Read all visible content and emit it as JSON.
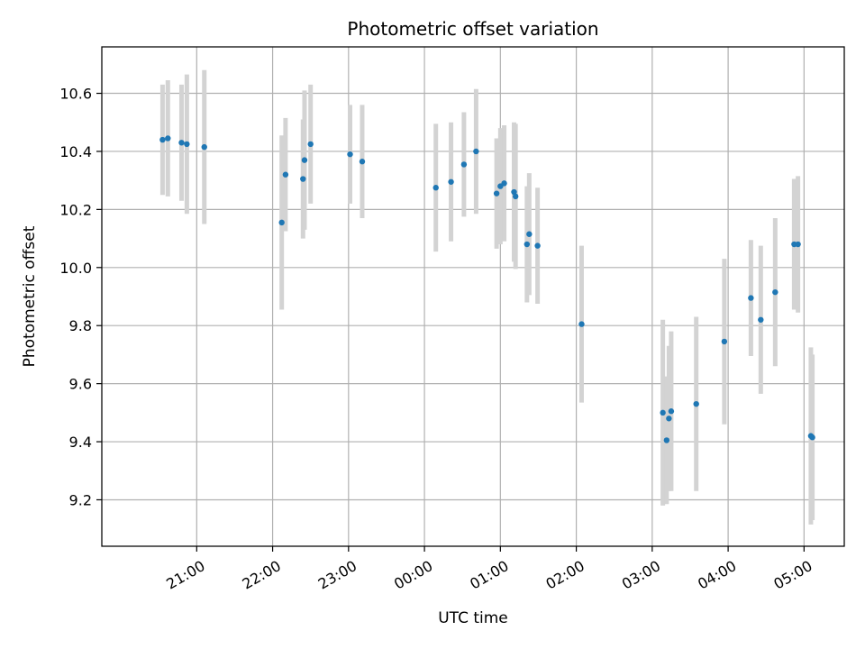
{
  "chart_data": {
    "type": "scatter",
    "title": "Photometric offset variation",
    "xlabel": "UTC time",
    "ylabel": "Photometric offset",
    "x_unit": "UTC hour (values past 24 = next day)",
    "xlim": [
      19.75,
      29.53
    ],
    "ylim": [
      9.04,
      10.76
    ],
    "x_ticks": [
      {
        "value": 21,
        "label": "21:00"
      },
      {
        "value": 22,
        "label": "22:00"
      },
      {
        "value": 23,
        "label": "23:00"
      },
      {
        "value": 24,
        "label": "00:00"
      },
      {
        "value": 25,
        "label": "01:00"
      },
      {
        "value": 26,
        "label": "02:00"
      },
      {
        "value": 27,
        "label": "03:00"
      },
      {
        "value": 28,
        "label": "04:00"
      },
      {
        "value": 29,
        "label": "05:00"
      }
    ],
    "y_ticks": [
      {
        "value": 9.2,
        "label": "9.2"
      },
      {
        "value": 9.4,
        "label": "9.4"
      },
      {
        "value": 9.6,
        "label": "9.6"
      },
      {
        "value": 9.8,
        "label": "9.8"
      },
      {
        "value": 10.0,
        "label": "10.0"
      },
      {
        "value": 10.2,
        "label": "10.2"
      },
      {
        "value": 10.4,
        "label": "10.4"
      },
      {
        "value": 10.6,
        "label": "10.6"
      }
    ],
    "grid": true,
    "marker_color": "#1f77b4",
    "errorbar_color": "#d3d3d3",
    "points": [
      {
        "x": 20.55,
        "y": 10.44,
        "err": 0.19
      },
      {
        "x": 20.62,
        "y": 10.445,
        "err": 0.2
      },
      {
        "x": 20.8,
        "y": 10.43,
        "err": 0.2
      },
      {
        "x": 20.87,
        "y": 10.425,
        "err": 0.24
      },
      {
        "x": 21.1,
        "y": 10.415,
        "err": 0.265
      },
      {
        "x": 22.12,
        "y": 10.155,
        "err": 0.3
      },
      {
        "x": 22.17,
        "y": 10.32,
        "err": 0.195
      },
      {
        "x": 22.4,
        "y": 10.305,
        "err": 0.205
      },
      {
        "x": 22.42,
        "y": 10.37,
        "err": 0.24
      },
      {
        "x": 22.5,
        "y": 10.425,
        "err": 0.205
      },
      {
        "x": 23.02,
        "y": 10.39,
        "err": 0.17
      },
      {
        "x": 23.18,
        "y": 10.365,
        "err": 0.195
      },
      {
        "x": 24.15,
        "y": 10.275,
        "err": 0.22
      },
      {
        "x": 24.35,
        "y": 10.295,
        "err": 0.205
      },
      {
        "x": 24.52,
        "y": 10.355,
        "err": 0.18
      },
      {
        "x": 24.68,
        "y": 10.4,
        "err": 0.215
      },
      {
        "x": 24.95,
        "y": 10.255,
        "err": 0.19
      },
      {
        "x": 25.0,
        "y": 10.28,
        "err": 0.2
      },
      {
        "x": 25.05,
        "y": 10.29,
        "err": 0.2
      },
      {
        "x": 25.18,
        "y": 10.26,
        "err": 0.24
      },
      {
        "x": 25.2,
        "y": 10.245,
        "err": 0.25
      },
      {
        "x": 25.35,
        "y": 10.08,
        "err": 0.2
      },
      {
        "x": 25.38,
        "y": 10.115,
        "err": 0.21
      },
      {
        "x": 25.49,
        "y": 10.075,
        "err": 0.2
      },
      {
        "x": 26.07,
        "y": 9.805,
        "err": 0.27
      },
      {
        "x": 27.14,
        "y": 9.5,
        "err": 0.32
      },
      {
        "x": 27.19,
        "y": 9.405,
        "err": 0.22
      },
      {
        "x": 27.22,
        "y": 9.48,
        "err": 0.25
      },
      {
        "x": 27.25,
        "y": 9.505,
        "err": 0.275
      },
      {
        "x": 27.58,
        "y": 9.53,
        "err": 0.3
      },
      {
        "x": 27.95,
        "y": 9.745,
        "err": 0.285
      },
      {
        "x": 28.3,
        "y": 9.895,
        "err": 0.2
      },
      {
        "x": 28.43,
        "y": 9.82,
        "err": 0.255
      },
      {
        "x": 28.62,
        "y": 9.915,
        "err": 0.255
      },
      {
        "x": 28.87,
        "y": 10.08,
        "err": 0.225
      },
      {
        "x": 28.92,
        "y": 10.08,
        "err": 0.235
      },
      {
        "x": 29.09,
        "y": 9.42,
        "err": 0.305
      },
      {
        "x": 29.11,
        "y": 9.415,
        "err": 0.285
      }
    ]
  }
}
